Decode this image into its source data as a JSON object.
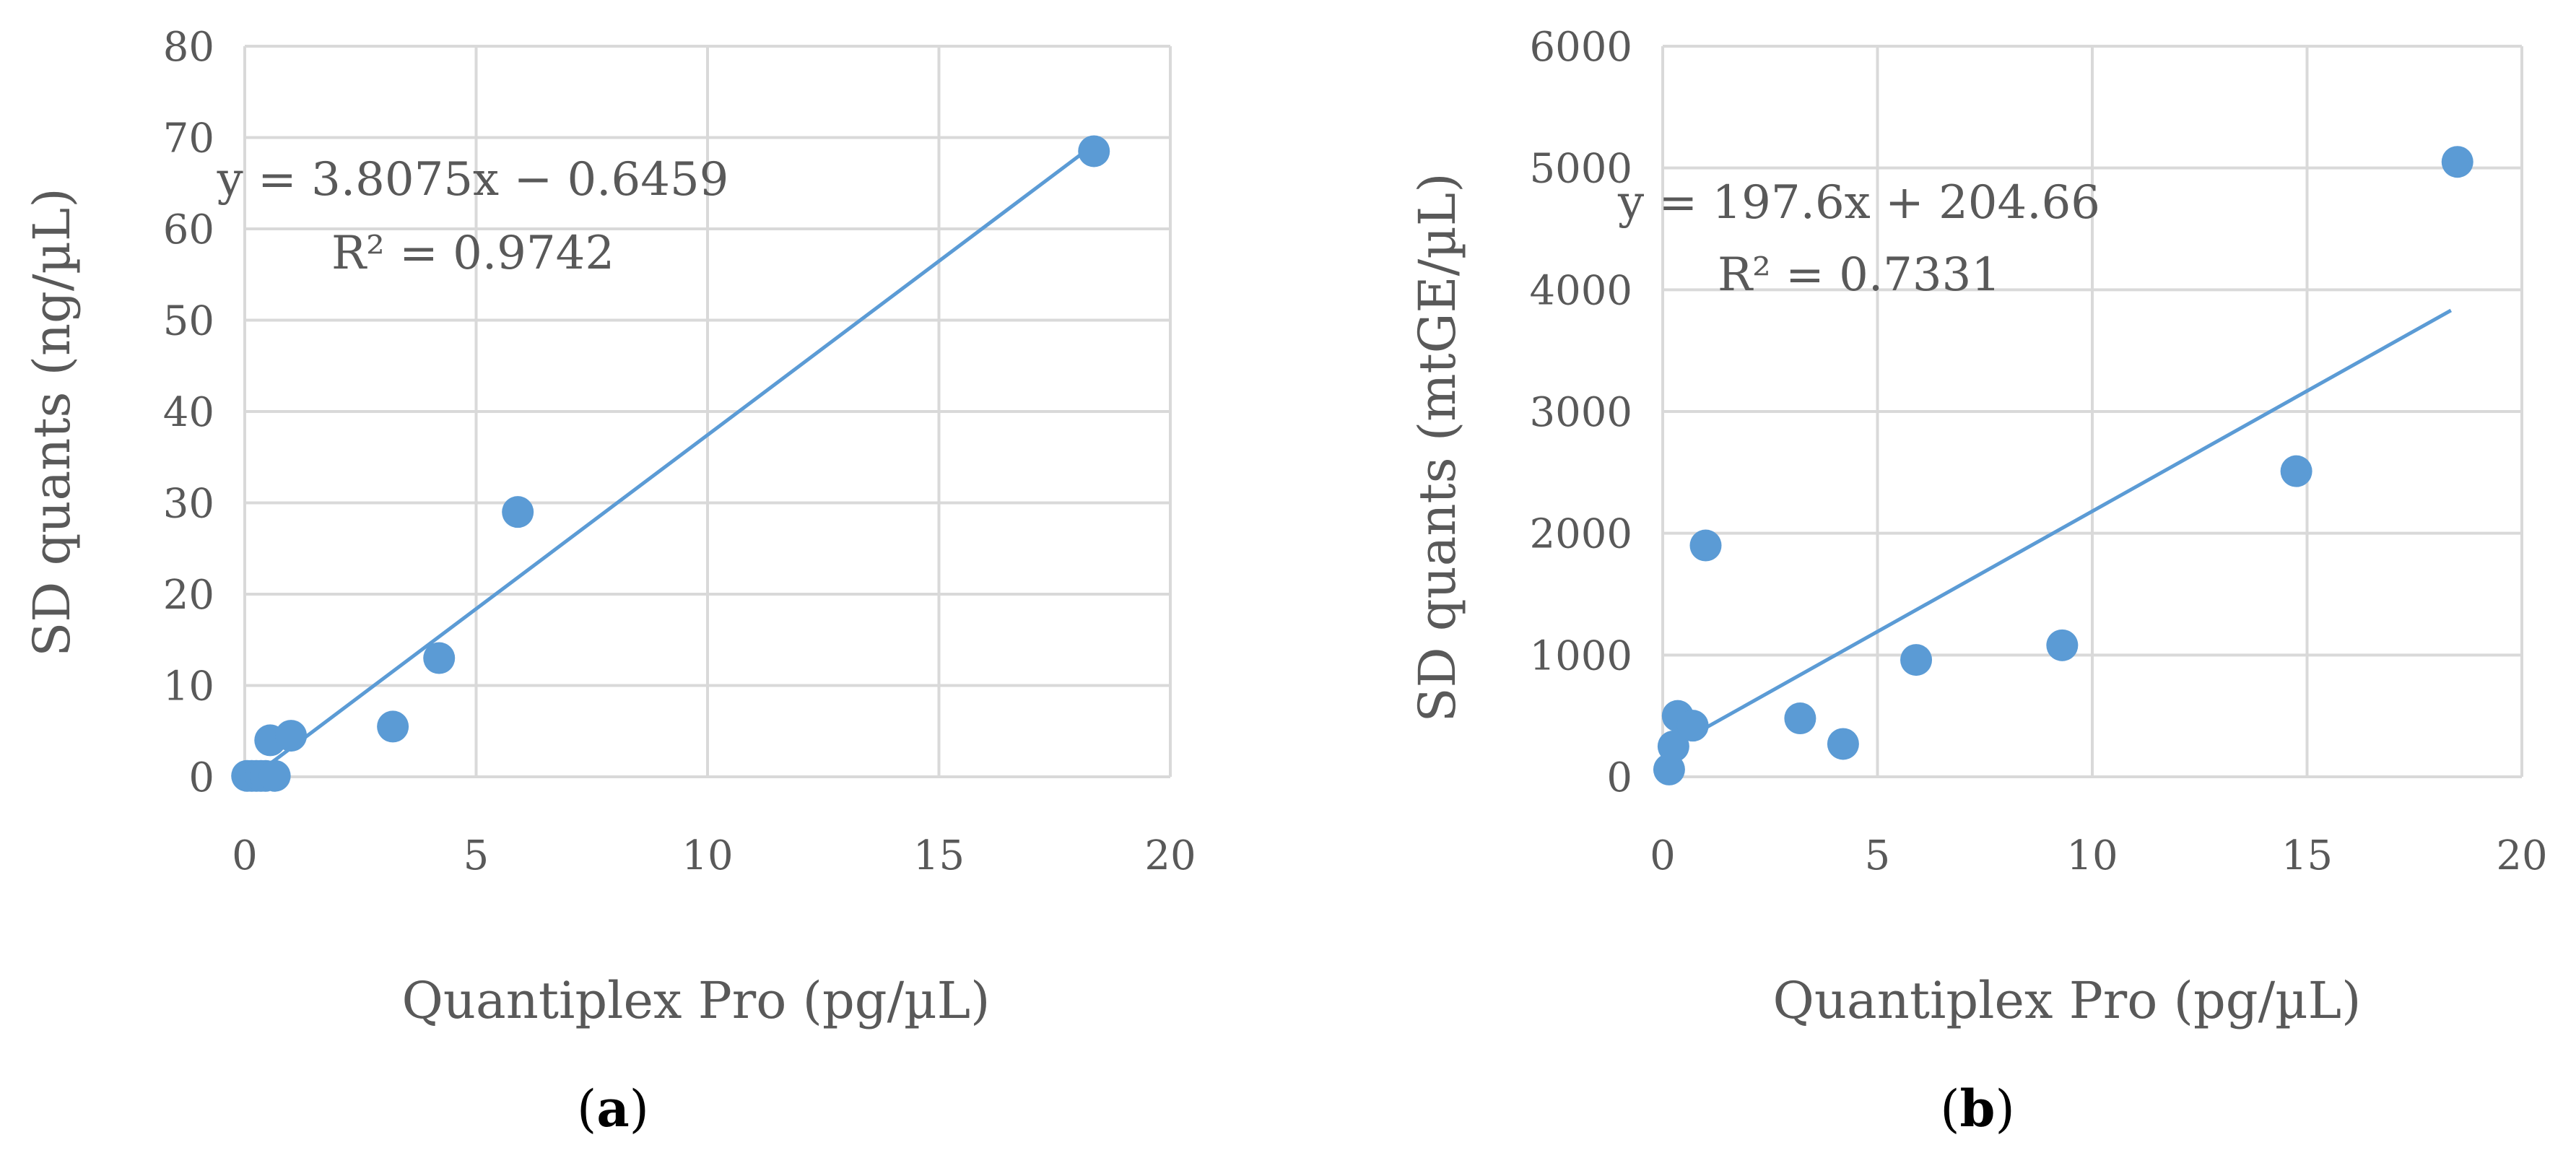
{
  "figure": {
    "panels": [
      {
        "label_open": "(",
        "label_letter": "a",
        "label_close": ")"
      },
      {
        "label_open": "(",
        "label_letter": "b",
        "label_close": ")"
      }
    ]
  },
  "colors": {
    "marker": "#5b9bd5",
    "trendline": "#5b9bd5",
    "grid": "#d9d9d9",
    "text": "#595959"
  },
  "chart_data": [
    {
      "type": "scatter",
      "title": "",
      "xlabel": "Quantiplex Pro (pg/µL)",
      "ylabel": "SD quants (ng/µL)",
      "xlim": [
        0,
        20
      ],
      "ylim": [
        0,
        80
      ],
      "xticks": [
        0,
        5,
        10,
        15,
        20
      ],
      "yticks": [
        0,
        10,
        20,
        30,
        40,
        50,
        60,
        70,
        80
      ],
      "grid": true,
      "x": [
        0.05,
        0.15,
        0.25,
        0.35,
        0.45,
        0.55,
        0.65,
        1.0,
        3.2,
        4.2,
        5.9,
        18.35
      ],
      "y": [
        0.1,
        0.1,
        0.1,
        0.1,
        0.1,
        4.0,
        0.1,
        4.5,
        5.5,
        13.0,
        29.0,
        68.5
      ],
      "trendline": {
        "slope": 3.8075,
        "intercept": -0.6459,
        "x_start": 0.6,
        "x_end": 18.35
      },
      "equation": "y = 3.8075x − 0.6459",
      "r_squared": "R² = 0.9742"
    },
    {
      "type": "scatter",
      "title": "",
      "xlabel": "Quantiplex Pro (pg/µL)",
      "ylabel": "SD quants (mtGE/µL)",
      "xlim": [
        0,
        20
      ],
      "ylim": [
        0,
        6000
      ],
      "xticks": [
        0,
        5,
        10,
        15,
        20
      ],
      "yticks": [
        0,
        1000,
        2000,
        3000,
        4000,
        5000,
        6000
      ],
      "grid": true,
      "x": [
        0.15,
        0.25,
        0.35,
        0.7,
        1.0,
        3.2,
        4.2,
        5.9,
        9.3,
        14.75,
        18.5
      ],
      "y": [
        60,
        250,
        500,
        420,
        1900,
        480,
        270,
        960,
        1080,
        2510,
        5050
      ],
      "trendline": {
        "slope": 197.6,
        "intercept": 204.66,
        "x_start": 0.45,
        "x_end": 18.35
      },
      "equation": "y = 197.6x + 204.66",
      "r_squared": "R² = 0.7331"
    }
  ]
}
